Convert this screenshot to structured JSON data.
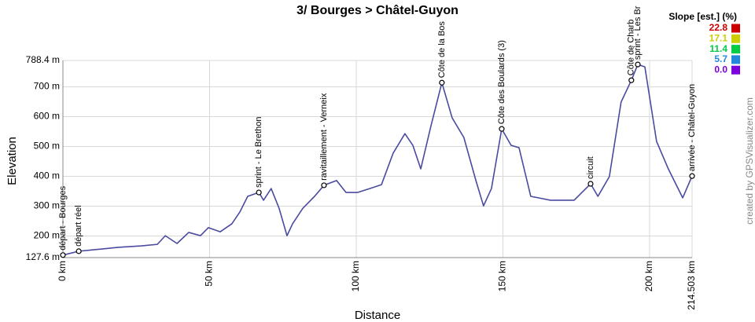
{
  "chart_data": {
    "type": "line",
    "title": "3/ Bourges > Châtel-Guyon",
    "x_label": "Distance",
    "y_label": "Elevation",
    "credit": "created by GPSVisualizer.com",
    "xlim": [
      0,
      214.503
    ],
    "ylim": [
      127.6,
      788.4
    ],
    "xticks": [
      {
        "value": 0,
        "label": "0 km"
      },
      {
        "value": 50,
        "label": "50 km"
      },
      {
        "value": 100,
        "label": "100 km"
      },
      {
        "value": 150,
        "label": "150 km"
      },
      {
        "value": 200,
        "label": "200 km"
      },
      {
        "value": 214.503,
        "label": "214.503 km"
      }
    ],
    "yticks": [
      {
        "value": 127.6,
        "label": "127.6 m"
      },
      {
        "value": 200,
        "label": "200 m"
      },
      {
        "value": 300,
        "label": "300 m"
      },
      {
        "value": 400,
        "label": "400 m"
      },
      {
        "value": 500,
        "label": "500 m"
      },
      {
        "value": 600,
        "label": "600 m"
      },
      {
        "value": 700,
        "label": "700 m"
      },
      {
        "value": 788.4,
        "label": "788.4 m"
      }
    ],
    "grid": true,
    "series": [
      {
        "color": "#4a4aa0",
        "x": [
          0,
          5.4,
          10.7,
          18.8,
          26.8,
          32.2,
          34.9,
          38.9,
          42.9,
          46.9,
          49.6,
          53.6,
          57.6,
          60.3,
          63.0,
          66.8,
          68.4,
          71.0,
          73.7,
          76.4,
          78.3,
          81.8,
          85.8,
          89.0,
          93.3,
          96.5,
          100.5,
          104.6,
          108.6,
          112.6,
          116.6,
          119.3,
          122.0,
          125.5,
          129.2,
          132.7,
          136.7,
          140.8,
          143.4,
          146.1,
          149.6,
          152.8,
          155.5,
          159.5,
          166.2,
          174.3,
          179.9,
          182.4,
          186.3,
          190.3,
          193.8,
          196.0,
          198.4,
          202.4,
          206.4,
          211.3,
          214.503
        ],
        "values": [
          136,
          149,
          154,
          162,
          167,
          172,
          201,
          175,
          212,
          201,
          228,
          214,
          241,
          280,
          333,
          346,
          320,
          359,
          293,
          201,
          241,
          293,
          333,
          370,
          386,
          346,
          346,
          359,
          372,
          478,
          543,
          504,
          425,
          570,
          714,
          596,
          530,
          386,
          301,
          359,
          559,
          504,
          496,
          333,
          320,
          320,
          375,
          333,
          399,
          649,
          722,
          775,
          767,
          517,
          425,
          328,
          401
        ]
      }
    ],
    "waypoints": [
      {
        "label": "départ - Bourges",
        "x": 0,
        "y": 136
      },
      {
        "label": "départ réel",
        "x": 5.4,
        "y": 149
      },
      {
        "label": "sprint - Le Brethon",
        "x": 66.8,
        "y": 346
      },
      {
        "label": "ravitaillement - Verneix",
        "x": 89.0,
        "y": 370
      },
      {
        "label": "Côte de la Bos",
        "x": 129.2,
        "y": 714
      },
      {
        "label": "Côte des Boulards (3)",
        "x": 149.6,
        "y": 559
      },
      {
        "label": "circuit",
        "x": 179.9,
        "y": 375
      },
      {
        "label": "Côte de Charb",
        "x": 193.8,
        "y": 722
      },
      {
        "label": "sprint - Les Br",
        "x": 196.0,
        "y": 775
      },
      {
        "label": "arrivée - Châtel-Guyon",
        "x": 214.503,
        "y": 401
      }
    ],
    "slope_legend": {
      "title": "Slope [est.] (%)",
      "items": [
        {
          "value": 22.8,
          "color": "#cc0000"
        },
        {
          "value": 17.1,
          "color": "#cccc00"
        },
        {
          "value": 11.4,
          "color": "#00cc44"
        },
        {
          "value": 5.7,
          "color": "#2288dd"
        },
        {
          "value": 0,
          "label": "0.0",
          "color": "#7a00dd"
        }
      ]
    }
  }
}
